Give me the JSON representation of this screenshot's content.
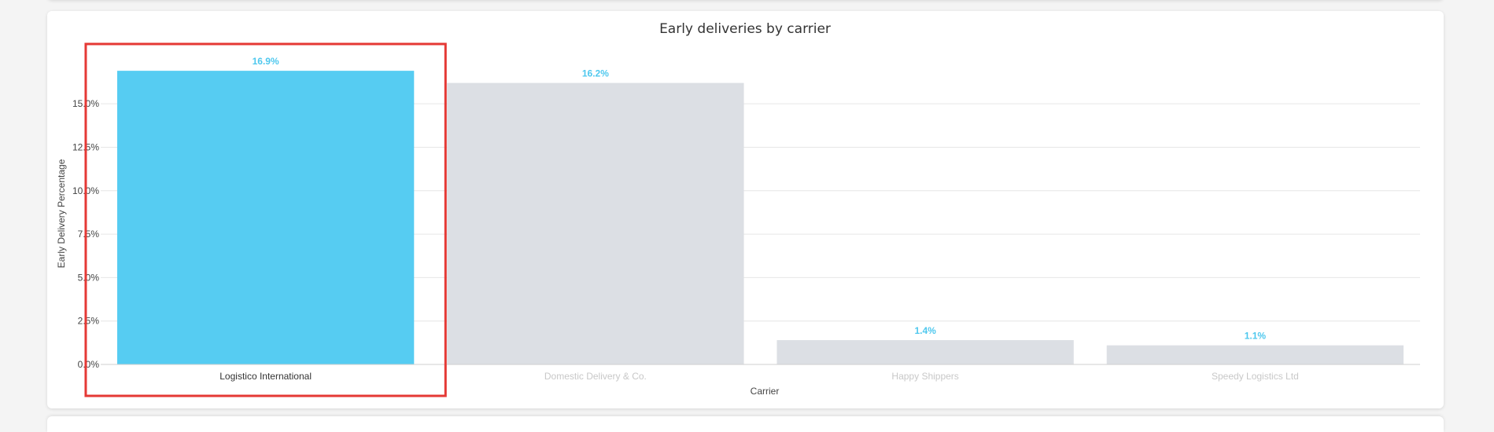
{
  "chart_data": {
    "type": "bar",
    "title": "Early deliveries by carrier",
    "xlabel": "Carrier",
    "ylabel": "Early Delivery Percentage",
    "categories": [
      "Logistico International",
      "Domestic Delivery & Co.",
      "Happy Shippers",
      "Speedy Logistics Ltd"
    ],
    "values": [
      16.9,
      16.2,
      1.4,
      1.1
    ],
    "data_labels": [
      "16.9%",
      "16.2%",
      "1.4%",
      "1.1%"
    ],
    "yticks": [
      0,
      2.5,
      5,
      7.5,
      10,
      12.5,
      15
    ],
    "ytick_labels": [
      "0.0%",
      "2.5%",
      "5.0%",
      "7.5%",
      "10.0%",
      "12.5%",
      "15.0%"
    ],
    "ylim": [
      0,
      17.9
    ],
    "highlighted_index": 0,
    "grid": true,
    "colors": {
      "highlight_bar": "#56ccf2",
      "muted_bar": "#dcdfe4",
      "data_label": "#4fc8ee",
      "selection_box": "#e53935",
      "muted_category_text": "#c8c8c8",
      "active_category_text": "#333333"
    }
  }
}
